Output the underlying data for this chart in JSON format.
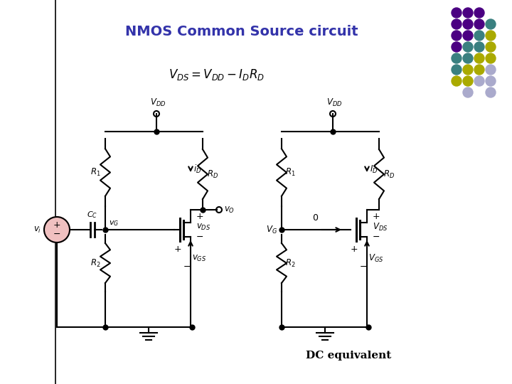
{
  "title": "NMOS Common Source circuit",
  "title_color": "#3333aa",
  "formula": "$V_{DS} = V_{DD} - I_D R_D$",
  "dc_label": "DC equivalent",
  "bg_color": "#ffffff",
  "line_color": "#000000",
  "dot_colors": {
    "purple": "#4b0082",
    "teal": "#3a8080",
    "yellow": "#aaaa00",
    "light": "#aaaacc"
  },
  "dot_grid": [
    [
      "purple",
      "purple",
      "purple",
      "none"
    ],
    [
      "purple",
      "purple",
      "purple",
      "teal"
    ],
    [
      "purple",
      "purple",
      "teal",
      "yellow"
    ],
    [
      "purple",
      "teal",
      "teal",
      "yellow"
    ],
    [
      "teal",
      "teal",
      "yellow",
      "yellow"
    ],
    [
      "teal",
      "yellow",
      "yellow",
      "light"
    ],
    [
      "yellow",
      "yellow",
      "light",
      "light"
    ],
    [
      "none",
      "light",
      "none",
      "light"
    ]
  ]
}
